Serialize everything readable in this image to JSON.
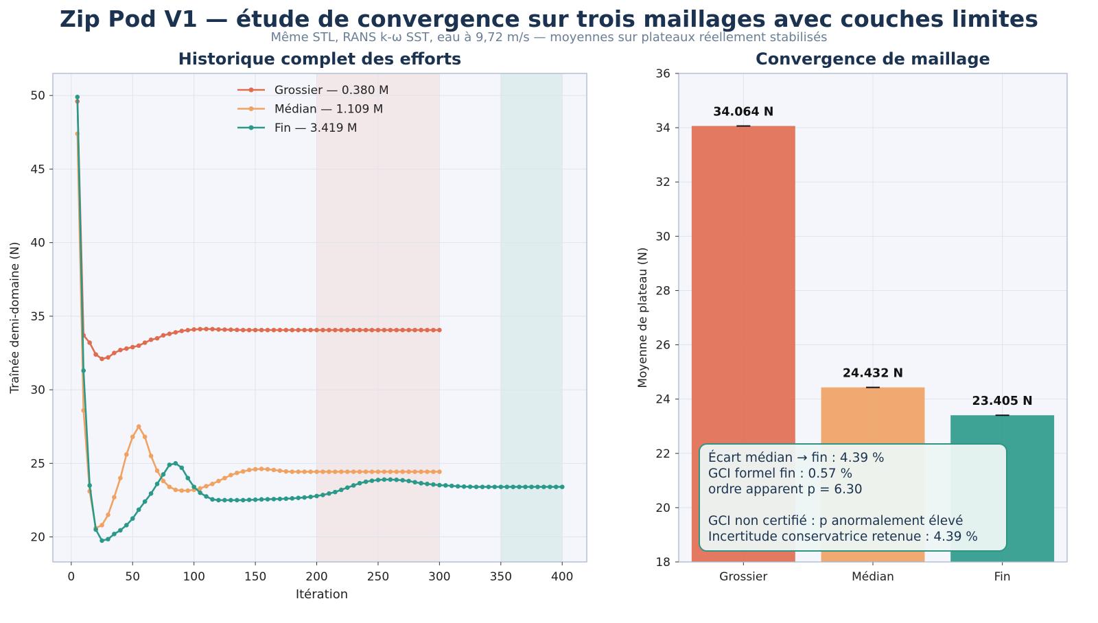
{
  "title": "Zip Pod V1 — étude de convergence sur trois maillages avec couches limites",
  "subtitle": "Même STL, RANS k-ω SST, eau à 9,72 m/s — moyennes sur plateaux réellement stabilisés",
  "colors": {
    "grossier": "#e06c4f",
    "median": "#f0a262",
    "fin": "#2a9989",
    "title": "#1b3350"
  },
  "chart_data": [
    {
      "type": "line",
      "title": "Historique complet des efforts",
      "xlabel": "Itération",
      "ylabel": "Traînée demi-domaine (N)",
      "xlim": [
        -15,
        420
      ],
      "ylim": [
        18.3,
        51.5
      ],
      "xticks": [
        0,
        50,
        100,
        150,
        200,
        250,
        300,
        350,
        400
      ],
      "yticks": [
        20,
        25,
        30,
        35,
        40,
        45,
        50
      ],
      "grid": true,
      "legend_position": "top-center",
      "shaded_regions": [
        {
          "x": [
            200,
            300
          ],
          "color": "#e06c4f"
        },
        {
          "x": [
            350,
            400
          ],
          "color": "#2a9989"
        }
      ],
      "series": [
        {
          "name": "Grossier — 0.380 M",
          "color": "#e06c4f",
          "points": [
            [
              5,
              49.6
            ],
            [
              10,
              33.7
            ],
            [
              15,
              33.2
            ],
            [
              20,
              32.4
            ],
            [
              25,
              32.1
            ],
            [
              30,
              32.2
            ],
            [
              35,
              32.5
            ],
            [
              40,
              32.7
            ],
            [
              45,
              32.8
            ],
            [
              50,
              32.9
            ],
            [
              55,
              33.0
            ],
            [
              60,
              33.2
            ],
            [
              65,
              33.4
            ],
            [
              70,
              33.5
            ],
            [
              75,
              33.7
            ],
            [
              80,
              33.8
            ],
            [
              85,
              33.9
            ],
            [
              90,
              34.0
            ],
            [
              95,
              34.05
            ],
            [
              100,
              34.1
            ],
            [
              105,
              34.12
            ],
            [
              110,
              34.13
            ],
            [
              115,
              34.12
            ],
            [
              120,
              34.1
            ],
            [
              125,
              34.09
            ],
            [
              130,
              34.08
            ],
            [
              135,
              34.07
            ],
            [
              140,
              34.06
            ],
            [
              145,
              34.06
            ],
            [
              150,
              34.06
            ],
            [
              155,
              34.06
            ],
            [
              160,
              34.06
            ],
            [
              165,
              34.06
            ],
            [
              170,
              34.06
            ],
            [
              175,
              34.06
            ],
            [
              180,
              34.06
            ],
            [
              185,
              34.06
            ],
            [
              190,
              34.06
            ],
            [
              195,
              34.06
            ],
            [
              200,
              34.06
            ],
            [
              205,
              34.06
            ],
            [
              210,
              34.06
            ],
            [
              215,
              34.06
            ],
            [
              220,
              34.06
            ],
            [
              225,
              34.06
            ],
            [
              230,
              34.06
            ],
            [
              235,
              34.06
            ],
            [
              240,
              34.06
            ],
            [
              245,
              34.06
            ],
            [
              250,
              34.06
            ],
            [
              255,
              34.06
            ],
            [
              260,
              34.06
            ],
            [
              265,
              34.06
            ],
            [
              270,
              34.06
            ],
            [
              275,
              34.06
            ],
            [
              280,
              34.06
            ],
            [
              285,
              34.06
            ],
            [
              290,
              34.06
            ],
            [
              295,
              34.06
            ],
            [
              300,
              34.06
            ]
          ]
        },
        {
          "name": "Médian — 1.109 M",
          "color": "#f0a262",
          "points": [
            [
              5,
              47.4
            ],
            [
              10,
              28.6
            ],
            [
              15,
              23.1
            ],
            [
              20,
              20.6
            ],
            [
              25,
              20.8
            ],
            [
              30,
              21.5
            ],
            [
              35,
              22.7
            ],
            [
              40,
              24.0
            ],
            [
              45,
              25.6
            ],
            [
              50,
              26.8
            ],
            [
              55,
              27.5
            ],
            [
              60,
              26.8
            ],
            [
              65,
              25.5
            ],
            [
              70,
              24.5
            ],
            [
              75,
              23.8
            ],
            [
              80,
              23.4
            ],
            [
              85,
              23.2
            ],
            [
              90,
              23.15
            ],
            [
              95,
              23.15
            ],
            [
              100,
              23.2
            ],
            [
              105,
              23.3
            ],
            [
              110,
              23.45
            ],
            [
              115,
              23.6
            ],
            [
              120,
              23.8
            ],
            [
              125,
              24.0
            ],
            [
              130,
              24.2
            ],
            [
              135,
              24.35
            ],
            [
              140,
              24.45
            ],
            [
              145,
              24.55
            ],
            [
              150,
              24.6
            ],
            [
              155,
              24.62
            ],
            [
              160,
              24.6
            ],
            [
              165,
              24.55
            ],
            [
              170,
              24.5
            ],
            [
              175,
              24.45
            ],
            [
              180,
              24.43
            ],
            [
              185,
              24.43
            ],
            [
              190,
              24.43
            ],
            [
              195,
              24.43
            ],
            [
              200,
              24.43
            ],
            [
              205,
              24.43
            ],
            [
              210,
              24.43
            ],
            [
              215,
              24.43
            ],
            [
              220,
              24.43
            ],
            [
              225,
              24.43
            ],
            [
              230,
              24.43
            ],
            [
              235,
              24.43
            ],
            [
              240,
              24.43
            ],
            [
              245,
              24.43
            ],
            [
              250,
              24.43
            ],
            [
              255,
              24.43
            ],
            [
              260,
              24.43
            ],
            [
              265,
              24.43
            ],
            [
              270,
              24.43
            ],
            [
              275,
              24.43
            ],
            [
              280,
              24.43
            ],
            [
              285,
              24.43
            ],
            [
              290,
              24.43
            ],
            [
              295,
              24.43
            ],
            [
              300,
              24.43
            ]
          ]
        },
        {
          "name": "Fin — 3.419 M",
          "color": "#2a9989",
          "points": [
            [
              5,
              49.9
            ],
            [
              10,
              31.3
            ],
            [
              15,
              23.5
            ],
            [
              20,
              20.5
            ],
            [
              25,
              19.75
            ],
            [
              30,
              19.85
            ],
            [
              35,
              20.2
            ],
            [
              40,
              20.45
            ],
            [
              45,
              20.8
            ],
            [
              50,
              21.25
            ],
            [
              55,
              21.85
            ],
            [
              60,
              22.4
            ],
            [
              65,
              22.95
            ],
            [
              70,
              23.6
            ],
            [
              75,
              24.25
            ],
            [
              80,
              24.9
            ],
            [
              85,
              25.0
            ],
            [
              90,
              24.7
            ],
            [
              95,
              24.0
            ],
            [
              100,
              23.4
            ],
            [
              105,
              23.0
            ],
            [
              110,
              22.75
            ],
            [
              115,
              22.55
            ],
            [
              120,
              22.5
            ],
            [
              125,
              22.5
            ],
            [
              130,
              22.5
            ],
            [
              135,
              22.5
            ],
            [
              140,
              22.5
            ],
            [
              145,
              22.52
            ],
            [
              150,
              22.53
            ],
            [
              155,
              22.55
            ],
            [
              160,
              22.56
            ],
            [
              165,
              22.57
            ],
            [
              170,
              22.58
            ],
            [
              175,
              22.6
            ],
            [
              180,
              22.62
            ],
            [
              185,
              22.65
            ],
            [
              190,
              22.68
            ],
            [
              195,
              22.72
            ],
            [
              200,
              22.78
            ],
            [
              205,
              22.85
            ],
            [
              210,
              22.95
            ],
            [
              215,
              23.05
            ],
            [
              220,
              23.2
            ],
            [
              225,
              23.35
            ],
            [
              230,
              23.5
            ],
            [
              235,
              23.65
            ],
            [
              240,
              23.75
            ],
            [
              245,
              23.82
            ],
            [
              250,
              23.87
            ],
            [
              255,
              23.9
            ],
            [
              260,
              23.9
            ],
            [
              265,
              23.88
            ],
            [
              270,
              23.85
            ],
            [
              275,
              23.8
            ],
            [
              280,
              23.72
            ],
            [
              285,
              23.65
            ],
            [
              290,
              23.6
            ],
            [
              295,
              23.56
            ],
            [
              300,
              23.52
            ],
            [
              305,
              23.5
            ],
            [
              310,
              23.47
            ],
            [
              315,
              23.44
            ],
            [
              320,
              23.42
            ],
            [
              325,
              23.41
            ],
            [
              330,
              23.4
            ],
            [
              335,
              23.4
            ],
            [
              340,
              23.4
            ],
            [
              345,
              23.4
            ],
            [
              350,
              23.4
            ],
            [
              355,
              23.4
            ],
            [
              360,
              23.4
            ],
            [
              365,
              23.4
            ],
            [
              370,
              23.4
            ],
            [
              375,
              23.4
            ],
            [
              380,
              23.4
            ],
            [
              385,
              23.4
            ],
            [
              390,
              23.4
            ],
            [
              395,
              23.4
            ],
            [
              400,
              23.4
            ]
          ]
        }
      ]
    },
    {
      "type": "bar",
      "title": "Convergence de maillage",
      "ylabel": "Moyenne de plateau (N)",
      "categories": [
        "Grossier",
        "Médian",
        "Fin"
      ],
      "values": [
        34.064,
        24.432,
        23.405
      ],
      "value_labels": [
        "34.064 N",
        "24.432 N",
        "23.405 N"
      ],
      "colors": [
        "#e06c4f",
        "#f0a262",
        "#2a9989"
      ],
      "ylim": [
        18,
        36
      ],
      "yticks": [
        18,
        20,
        22,
        24,
        26,
        28,
        30,
        32,
        34,
        36
      ],
      "grid": true,
      "annotation": [
        "Écart médian → fin : 4.39 %",
        "GCI formel fin : 0.57 %",
        "ordre apparent p = 6.30",
        "",
        "GCI non certifié : p anormalement élevé",
        "Incertitude conservatrice retenue : 4.39 %"
      ]
    }
  ]
}
